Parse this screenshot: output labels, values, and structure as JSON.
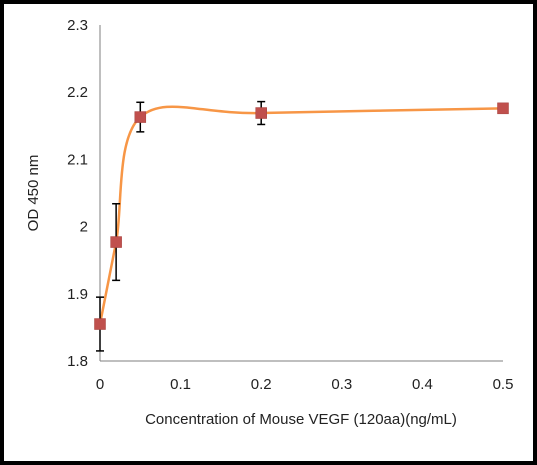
{
  "chart_data": {
    "type": "scatter",
    "title": "",
    "xlabel": "Concentration of Mouse VEGF (120aa)(ng/mL)",
    "ylabel": "OD 450 nm",
    "xlim": [
      0,
      0.5
    ],
    "ylim": [
      1.8,
      2.3
    ],
    "x_ticks": [
      "0",
      "0.1",
      "0.2",
      "0.3",
      "0.4",
      "0.5"
    ],
    "y_ticks": [
      "1.8",
      "1.9",
      "2",
      "2.1",
      "2.2",
      "2.3"
    ],
    "grid": false,
    "legend": "none",
    "series": [
      {
        "x": [
          0,
          0.02,
          0.05,
          0.2,
          0.5
        ],
        "y": [
          1.855,
          1.977,
          2.163,
          2.169,
          2.176
        ],
        "error": [
          0.04,
          0.057,
          0.022,
          0.017,
          0
        ],
        "marker": "square",
        "trendline": "smooth"
      }
    ],
    "colors": {
      "marker": "#c0504d",
      "line": "#f79646",
      "axis": "#7f7f7f",
      "frame": "#000000"
    }
  }
}
